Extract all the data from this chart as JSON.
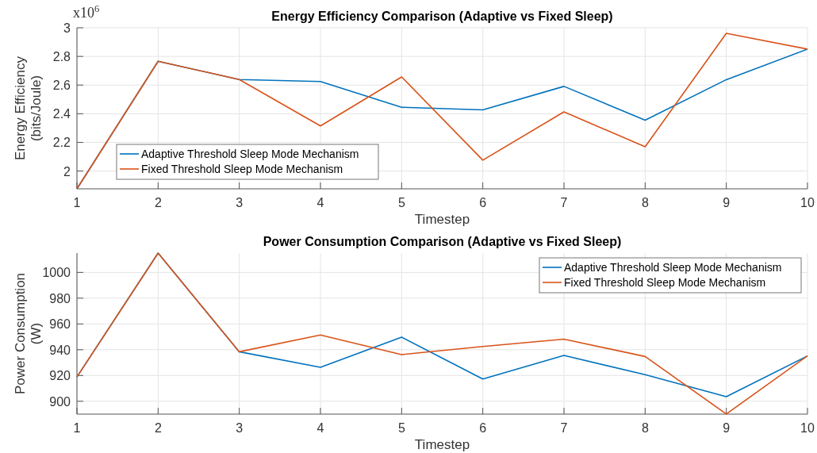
{
  "chart_data": [
    {
      "type": "line",
      "title": "Energy Efficiency Comparison (Adaptive vs Fixed Sleep)",
      "xlabel": "Timestep",
      "ylabel": "Energy Efficiency\n(bits/Joule)",
      "annotations": [
        "x10$^{6}$"
      ],
      "x": [
        1,
        2,
        3,
        4,
        5,
        6,
        7,
        8,
        9,
        10
      ],
      "series": [
        {
          "name": "Adaptive Threshold Sleep Mode Mechanism",
          "color": "#0072bd",
          "values": [
            1.876,
            2.766,
            2.639,
            2.625,
            2.445,
            2.427,
            2.591,
            2.355,
            2.638,
            2.851
          ]
        },
        {
          "name": "Fixed Threshold Sleep Mode Mechanism",
          "color": "#d95319",
          "values": [
            1.876,
            2.766,
            2.639,
            2.315,
            2.657,
            2.076,
            2.413,
            2.169,
            2.961,
            2.851
          ]
        }
      ],
      "xlim": [
        1,
        10
      ],
      "xticks": [
        1,
        2,
        3,
        4,
        5,
        6,
        7,
        8,
        9,
        10
      ],
      "ylim": [
        1.876,
        3
      ],
      "yticks": [
        2,
        2.2,
        2.4,
        2.6,
        2.8,
        3
      ],
      "grid": true,
      "legend": "bottom left"
    },
    {
      "type": "line",
      "title": "Power Consumption Comparison (Adaptive vs Fixed Sleep)",
      "xlabel": "Timestep",
      "ylabel": "Power Consumption\n(W)",
      "x": [
        1,
        2,
        3,
        4,
        5,
        6,
        7,
        8,
        9,
        10
      ],
      "series": [
        {
          "name": "Adaptive Threshold Sleep Mode Mechanism",
          "color": "#0072bd",
          "values": [
            918.9,
            1015,
            938.4,
            926.3,
            949.7,
            917.3,
            935.6,
            920.6,
            903.6,
            935.2
          ]
        },
        {
          "name": "Fixed Threshold Sleep Mode Mechanism",
          "color": "#d95319",
          "values": [
            918.9,
            1015,
            938.4,
            951.4,
            936.2,
            942.5,
            948.2,
            934.7,
            890.1,
            935.2
          ]
        }
      ],
      "xlim": [
        1,
        10
      ],
      "xticks": [
        1,
        2,
        3,
        4,
        5,
        6,
        7,
        8,
        9,
        10
      ],
      "ylim": [
        890,
        1015
      ],
      "yticks": [
        900,
        920,
        940,
        960,
        980,
        1000
      ],
      "grid": true,
      "legend": "top right"
    }
  ]
}
